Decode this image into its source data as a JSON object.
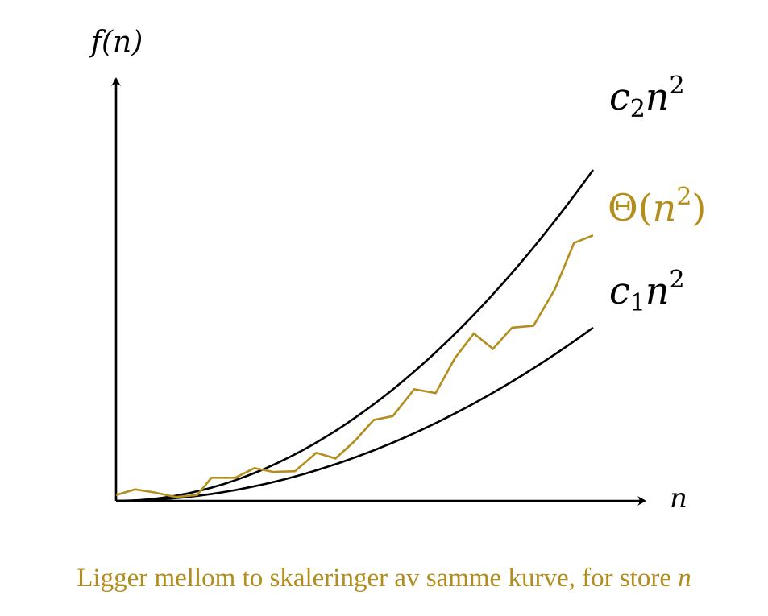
{
  "axes": {
    "y_label": "f(n)",
    "x_label": "n"
  },
  "curves": [
    {
      "id": "upper",
      "label": "c₂n²",
      "coef_symbol": "c",
      "coef_sub": "2",
      "var": "n",
      "exp": "2",
      "color": "#000000"
    },
    {
      "id": "theta",
      "label": "Θ(n²)",
      "symbol": "Θ",
      "var": "n",
      "exp": "2",
      "color": "#b38e1c"
    },
    {
      "id": "lower",
      "label": "c₁n²",
      "coef_symbol": "c",
      "coef_sub": "1",
      "var": "n",
      "exp": "2",
      "color": "#000000"
    }
  ],
  "chart_data": {
    "type": "line",
    "xlim": [
      0,
      1
    ],
    "ylim": [
      0,
      1
    ],
    "series": [
      {
        "name": "c2n^2",
        "coefficient": 0.86,
        "x": [
          0,
          0.05,
          0.1,
          0.15,
          0.2,
          0.25,
          0.3,
          0.35,
          0.4,
          0.45,
          0.5,
          0.55,
          0.6,
          0.65,
          0.7,
          0.75,
          0.8,
          0.85,
          0.9,
          0.95,
          1.0
        ]
      },
      {
        "name": "c1n^2",
        "coefficient": 0.45,
        "x": [
          0,
          0.05,
          0.1,
          0.15,
          0.2,
          0.25,
          0.3,
          0.35,
          0.4,
          0.45,
          0.5,
          0.55,
          0.6,
          0.65,
          0.7,
          0.75,
          0.8,
          0.85,
          0.9,
          0.95,
          1.0
        ]
      },
      {
        "name": "Theta(n^2)",
        "x": [
          0,
          0.04,
          0.08,
          0.125,
          0.17,
          0.2,
          0.25,
          0.29,
          0.33,
          0.375,
          0.42,
          0.46,
          0.5,
          0.54,
          0.58,
          0.625,
          0.67,
          0.71,
          0.75,
          0.79,
          0.83,
          0.875,
          0.92,
          0.96,
          1.0
        ],
        "y": [
          0.015,
          0.03,
          0.022,
          0.01,
          0.015,
          0.06,
          0.06,
          0.085,
          0.075,
          0.077,
          0.125,
          0.11,
          0.155,
          0.21,
          0.22,
          0.29,
          0.28,
          0.37,
          0.435,
          0.395,
          0.45,
          0.455,
          0.55,
          0.67,
          0.69
        ]
      }
    ]
  },
  "caption": {
    "text": "Ligger mellom to skaleringer av samme kurve, for store ",
    "var": "n"
  }
}
